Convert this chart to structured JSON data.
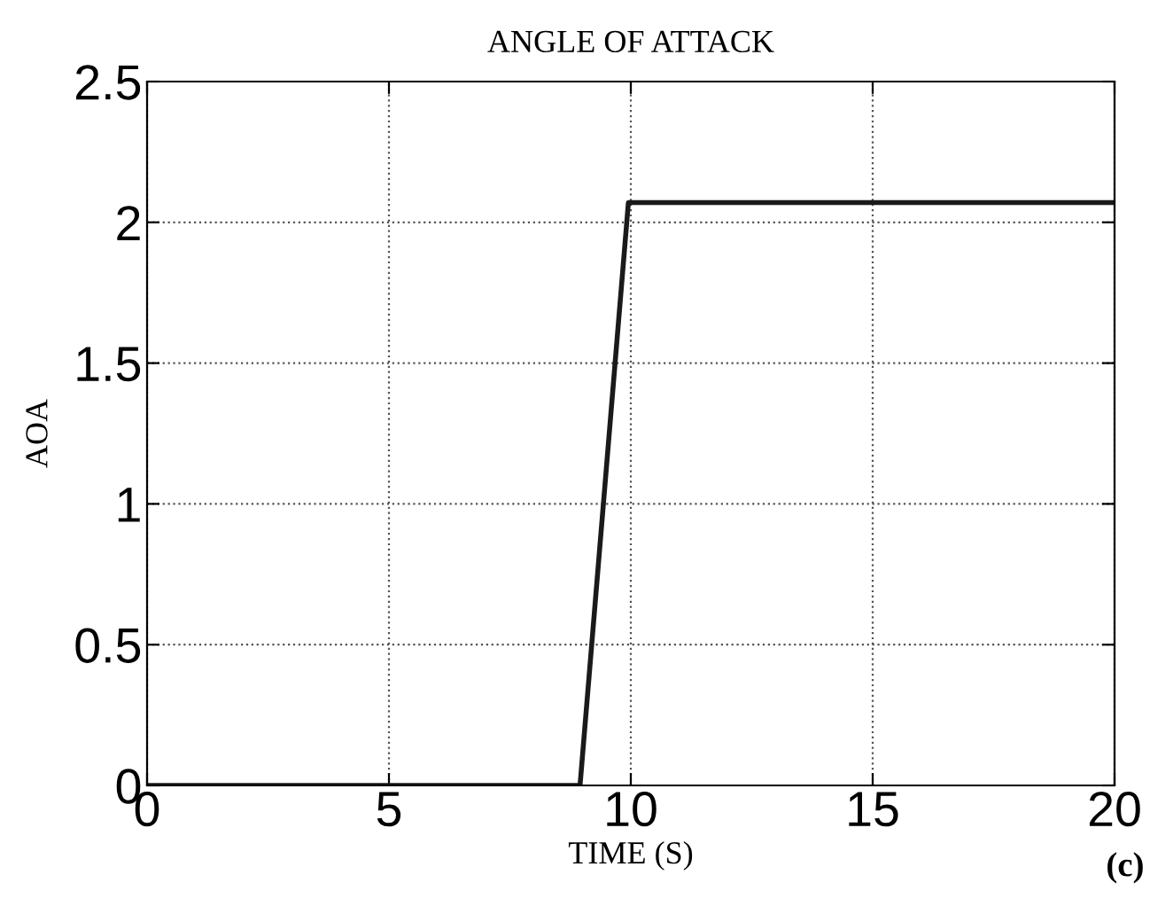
{
  "chart_data": {
    "type": "line",
    "title": "ANGLE OF ATTACK",
    "xlabel": "TIME (S)",
    "ylabel": "AOA",
    "annotations": [
      "(c)"
    ],
    "x": [
      0,
      8.95,
      9.95,
      20
    ],
    "series": [
      {
        "color": "#1a1a1a",
        "values": [
          0,
          0,
          2.07,
          2.07
        ]
      }
    ],
    "xlim": [
      0,
      20
    ],
    "xticks": [
      0,
      5,
      10,
      15,
      20
    ],
    "ylim": [
      0,
      2.5
    ],
    "yticks": [
      0,
      0.5,
      1,
      1.5,
      2,
      2.5
    ],
    "grid": true,
    "legend": false,
    "marker": "none",
    "line_style": "solid"
  }
}
